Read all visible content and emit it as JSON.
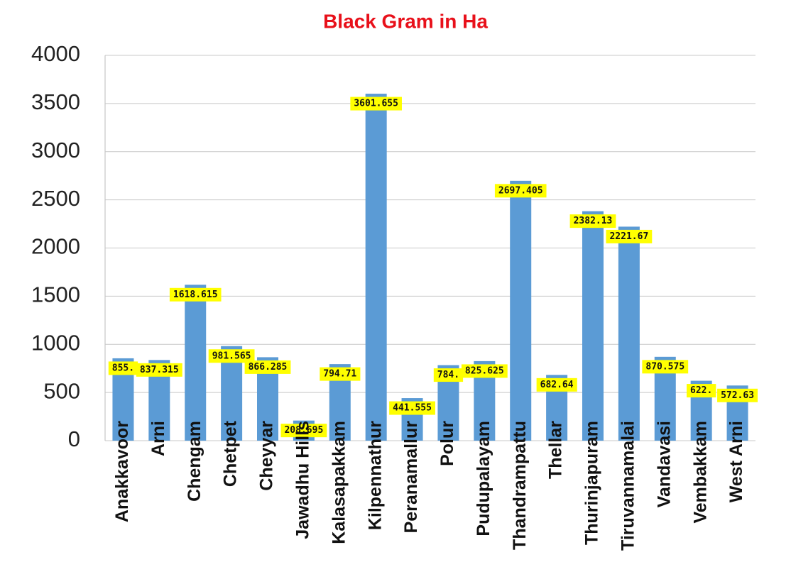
{
  "chart_data": {
    "type": "bar",
    "title": "Black Gram in Ha",
    "categories": [
      "Anakkavoor",
      "Arni",
      "Chengam",
      "Chetpet",
      "Cheyyar",
      "Jawadhu Hills",
      "Kalasapakkam",
      "Kilpennathur",
      "Peranamallur",
      "Polur",
      "Pudupalayam",
      "Thandrampattu",
      "Thellar",
      "Thurinjapuram",
      "Tiruvannamalai",
      "Vandavasi",
      "Vembakkam",
      "West Arni"
    ],
    "values": [
      855,
      837.315,
      1618.615,
      981.565,
      866.285,
      208.695,
      794.71,
      3601.655,
      441.555,
      784,
      825.625,
      2697.405,
      682.64,
      2382.13,
      2221.67,
      870.575,
      622,
      572.63
    ],
    "value_labels": [
      "855.",
      "837.315",
      "1618.615",
      "981.565",
      "866.285",
      "208.695",
      "794.71",
      "3601.655",
      "441.555",
      "784.",
      "825.625",
      "2697.405",
      "682.64",
      "2382.13",
      "2221.67",
      "870.575",
      "622.",
      "572.63"
    ],
    "color": "#5b9bd5",
    "label_color": "#ffff00",
    "ylim": [
      0,
      4000
    ],
    "yticks": [
      0,
      500,
      1000,
      1500,
      2000,
      2500,
      3000,
      3500,
      4000
    ],
    "grid": true
  }
}
